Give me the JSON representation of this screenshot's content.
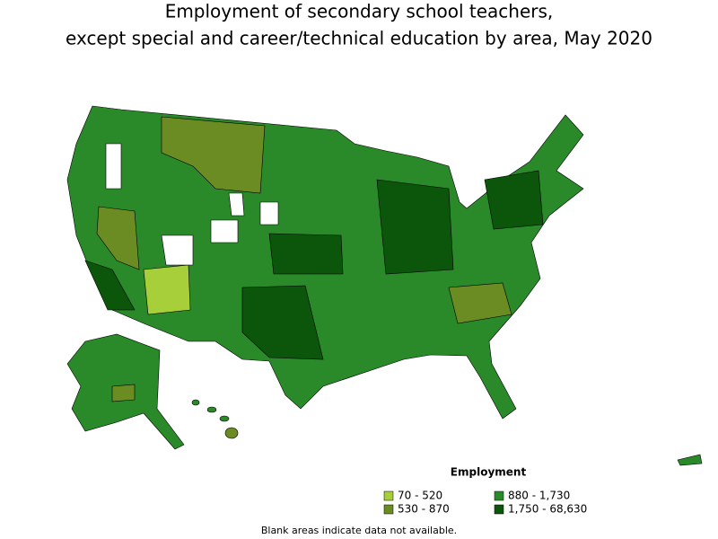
{
  "title": [
    "Employment of secondary school teachers,",
    "except special and career/technical education by area, May 2020"
  ],
  "legend": {
    "title": "Employment",
    "items": [
      {
        "label": "70 - 520",
        "color": "#a6cf3a"
      },
      {
        "label": "530 - 870",
        "color": "#6b8c23"
      },
      {
        "label": "880 - 1,730",
        "color": "#2a8a2a"
      },
      {
        "label": "1,750 - 68,630",
        "color": "#0b560b"
      }
    ]
  },
  "note": "Blank areas indicate data not available."
}
